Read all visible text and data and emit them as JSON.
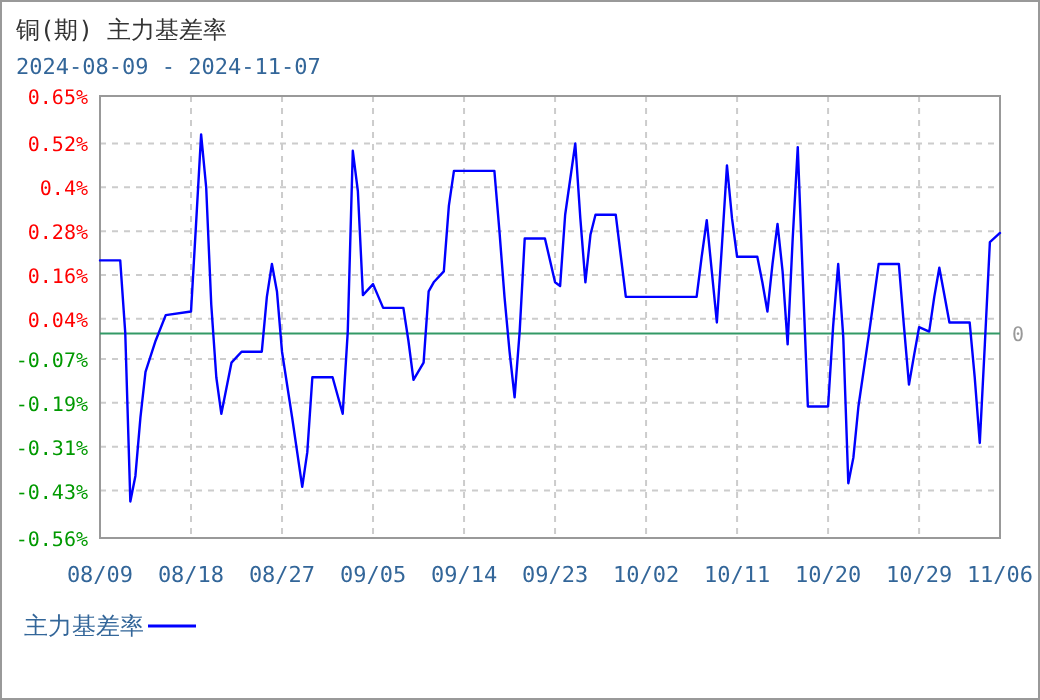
{
  "chart_data": {
    "type": "line",
    "title": "铜(期) 主力基差率",
    "subtitle": "2024-08-09 - 2024-11-07",
    "x": [
      "2024-08-09",
      "2024-08-11",
      "2024-08-11T12:00",
      "2024-08-12",
      "2024-08-12T12:00",
      "2024-08-13",
      "2024-08-13T12:00",
      "2024-08-14T12:00",
      "2024-08-15T12:00",
      "2024-08-18",
      "2024-08-18T12:00",
      "2024-08-19",
      "2024-08-19T12:00",
      "2024-08-20",
      "2024-08-20T12:00",
      "2024-08-21",
      "2024-08-22",
      "2024-08-23",
      "2024-08-25",
      "2024-08-25T12:00",
      "2024-08-26",
      "2024-08-26T12:00",
      "2024-08-27",
      "2024-08-28",
      "2024-08-29",
      "2024-08-29T12:00",
      "2024-08-30",
      "2024-09-01",
      "2024-09-02",
      "2024-09-02T12:00",
      "2024-09-03",
      "2024-09-03T12:00",
      "2024-09-04",
      "2024-09-05",
      "2024-09-06",
      "2024-09-08",
      "2024-09-08T12:00",
      "2024-09-09",
      "2024-09-10",
      "2024-09-10T12:00",
      "2024-09-11",
      "2024-09-12",
      "2024-09-12T12:00",
      "2024-09-13",
      "2024-09-17",
      "2024-09-17T12:00",
      "2024-09-18",
      "2024-09-18T12:00",
      "2024-09-19",
      "2024-09-19T12:00",
      "2024-09-20",
      "2024-09-22",
      "2024-09-23",
      "2024-09-23T12:00",
      "2024-09-24",
      "2024-09-25",
      "2024-09-25T12:00",
      "2024-09-26",
      "2024-09-26T12:00",
      "2024-09-27",
      "2024-09-29",
      "2024-09-30",
      "2024-10-07",
      "2024-10-07T12:00",
      "2024-10-08",
      "2024-10-08T12:00",
      "2024-10-09",
      "2024-10-09T12:00",
      "2024-10-10",
      "2024-10-10T12:00",
      "2024-10-11",
      "2024-10-13",
      "2024-10-13T12:00",
      "2024-10-14",
      "2024-10-14T12:00",
      "2024-10-15",
      "2024-10-15T12:00",
      "2024-10-16",
      "2024-10-16T12:00",
      "2024-10-17",
      "2024-10-17T12:00",
      "2024-10-18",
      "2024-10-20",
      "2024-10-20T12:00",
      "2024-10-21",
      "2024-10-21T12:00",
      "2024-10-22",
      "2024-10-22T12:00",
      "2024-10-23",
      "2024-10-24",
      "2024-10-25",
      "2024-10-27",
      "2024-10-27T12:00",
      "2024-10-28",
      "2024-10-28T12:00",
      "2024-10-29",
      "2024-10-30",
      "2024-10-30T12:00",
      "2024-10-31",
      "2024-10-31T12:00",
      "2024-11-01",
      "2024-11-03",
      "2024-11-03T12:00",
      "2024-11-04",
      "2024-11-04T12:00",
      "2024-11-05",
      "2024-11-06"
    ],
    "series": [
      {
        "name": "主力基差率",
        "color": "#0000ff",
        "values": [
          0.2,
          0.2,
          0.0,
          -0.46,
          -0.39,
          -0.23,
          -0.105,
          -0.02,
          0.05,
          0.06,
          0.3,
          0.545,
          0.4,
          0.08,
          -0.12,
          -0.22,
          -0.08,
          -0.05,
          -0.05,
          0.1,
          0.19,
          0.115,
          -0.05,
          -0.23,
          -0.42,
          -0.325,
          -0.12,
          -0.12,
          -0.22,
          0.005,
          0.5,
          0.39,
          0.105,
          0.135,
          0.07,
          0.07,
          -0.02,
          -0.127,
          -0.08,
          0.115,
          0.14,
          0.17,
          0.35,
          0.445,
          0.445,
          0.28,
          0.1,
          -0.05,
          -0.175,
          0.005,
          0.26,
          0.26,
          0.14,
          0.13,
          0.325,
          0.52,
          0.315,
          0.14,
          0.27,
          0.325,
          0.325,
          0.1,
          0.1,
          0.21,
          0.31,
          0.17,
          0.03,
          0.24,
          0.46,
          0.315,
          0.21,
          0.21,
          0.14,
          0.06,
          0.19,
          0.3,
          0.17,
          -0.03,
          0.26,
          0.51,
          0.15,
          -0.2,
          -0.2,
          0.02,
          0.19,
          -0.01,
          -0.41,
          -0.34,
          -0.2,
          -0.01,
          0.19,
          0.19,
          0.02,
          -0.14,
          -0.06,
          0.017,
          0.005,
          0.1,
          0.18,
          0.105,
          0.03,
          0.03,
          -0.12,
          -0.3,
          -0.03,
          0.25,
          0.275
        ]
      }
    ],
    "xlim": [
      "2024-08-09",
      "2024-11-06"
    ],
    "xticks": [
      {
        "value": "2024-08-09",
        "label": "08/09"
      },
      {
        "value": "2024-08-18",
        "label": "08/18"
      },
      {
        "value": "2024-08-27",
        "label": "08/27"
      },
      {
        "value": "2024-09-05",
        "label": "09/05"
      },
      {
        "value": "2024-09-14",
        "label": "09/14"
      },
      {
        "value": "2024-09-23",
        "label": "09/23"
      },
      {
        "value": "2024-10-02",
        "label": "10/02"
      },
      {
        "value": "2024-10-11",
        "label": "10/11"
      },
      {
        "value": "2024-10-20",
        "label": "10/20"
      },
      {
        "value": "2024-10-29",
        "label": "10/29"
      },
      {
        "value": "2024-11-06",
        "label": "11/06"
      }
    ],
    "ylim": [
      -0.56,
      0.65
    ],
    "yticks": [
      {
        "value": -0.56,
        "label": "-0.56%"
      },
      {
        "value": -0.43,
        "label": "-0.43%"
      },
      {
        "value": -0.31,
        "label": "-0.31%"
      },
      {
        "value": -0.19,
        "label": "-0.19%"
      },
      {
        "value": -0.07,
        "label": "-0.07%"
      },
      {
        "value": 0.04,
        "label": "0.04%"
      },
      {
        "value": 0.16,
        "label": "0.16%"
      },
      {
        "value": 0.28,
        "label": "0.28%"
      },
      {
        "value": 0.4,
        "label": "0.4%"
      },
      {
        "value": 0.52,
        "label": "0.52%"
      },
      {
        "value": 0.65,
        "label": "0.65%"
      }
    ],
    "ref_lines": [
      {
        "axis": "y",
        "value": 0,
        "label": "0",
        "color": "#339966"
      }
    ],
    "grid": true,
    "legend": "bottom left",
    "marker": "none",
    "line_style": "solid"
  }
}
